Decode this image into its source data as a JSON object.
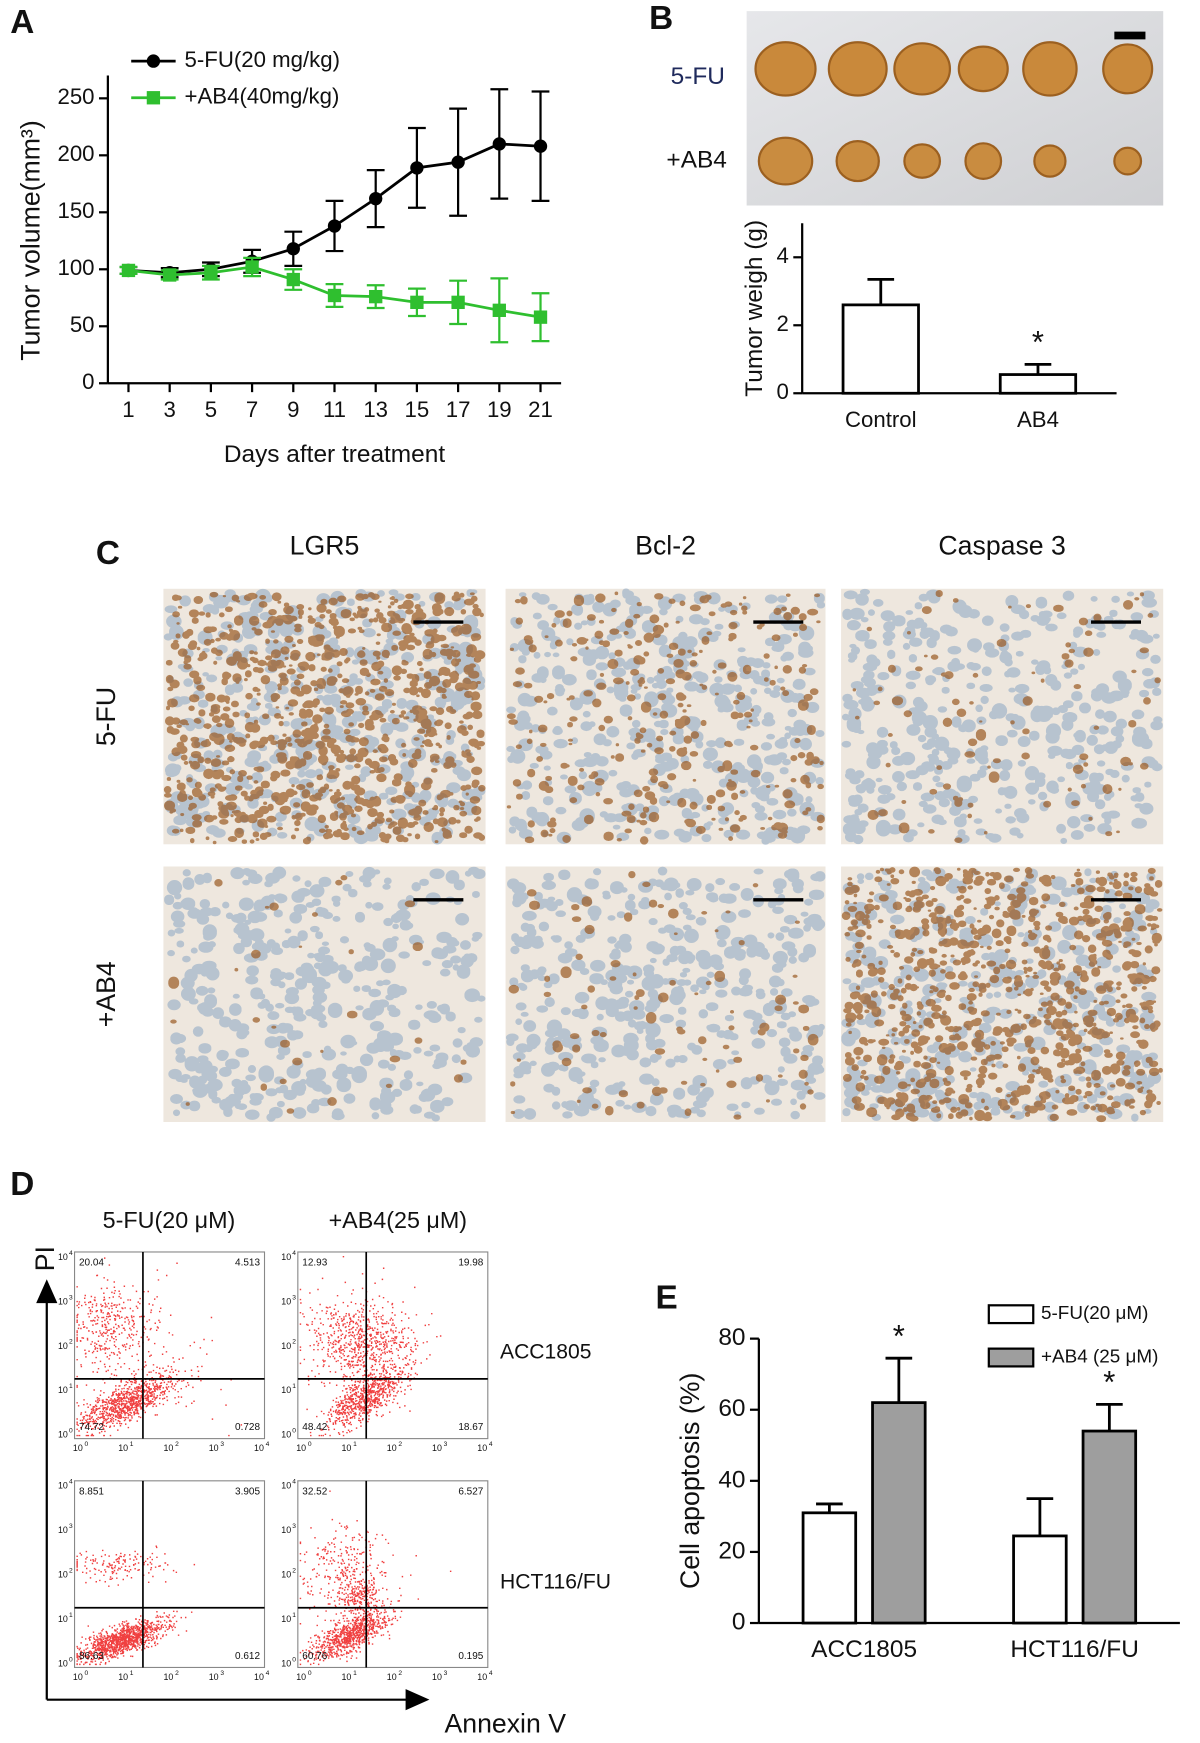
{
  "panel_labels": [
    "A",
    "B",
    "C",
    "D",
    "E"
  ],
  "chart_data": [
    {
      "type": "line",
      "x": [
        1,
        3,
        5,
        7,
        9,
        11,
        13,
        15,
        17,
        19,
        21
      ],
      "xlim": [
        0,
        22
      ],
      "xticks": [
        1,
        3,
        5,
        7,
        9,
        11,
        13,
        15,
        17,
        19,
        21
      ],
      "ylim": [
        0,
        270
      ],
      "yticks": [
        0,
        50,
        100,
        150,
        200,
        250
      ],
      "x_label": "Days after treatment",
      "y_label": "Tumor volume(mm³)",
      "legend": "upper left",
      "series": [
        {
          "name": "5-FU(20 mg/kg)",
          "color": "#000000",
          "marker": "circle",
          "values": [
            99,
            97,
            100,
            107,
            118,
            138,
            162,
            189,
            194,
            210,
            208
          ],
          "errors": [
            3,
            4,
            6,
            10,
            15,
            22,
            25,
            35,
            47,
            48,
            48
          ]
        },
        {
          "name": "+AB4(40mg/kg)",
          "color": "#2fbf2f",
          "marker": "square",
          "values": [
            99,
            95,
            97,
            102,
            91,
            77,
            76,
            71,
            71,
            64,
            58
          ],
          "errors": [
            3,
            4,
            6,
            8,
            9,
            10,
            10,
            12,
            19,
            28,
            21
          ]
        }
      ]
    },
    {
      "type": "bar",
      "categories": [
        "Control",
        "AB4"
      ],
      "values": [
        2.6,
        0.55
      ],
      "errors": [
        0.75,
        0.3
      ],
      "significance": [
        null,
        "*"
      ],
      "color": "#ffffff",
      "ylim": [
        0,
        5
      ],
      "yticks": [
        0,
        2,
        4
      ],
      "y_label": "Tumor weigh (g)"
    },
    {
      "type": "bar",
      "categories": [
        "ACC1805",
        "HCT116/FU"
      ],
      "ylim": [
        0,
        80
      ],
      "yticks": [
        0,
        20,
        40,
        60,
        80
      ],
      "y_label": "Cell apoptosis (%)",
      "legend": "upper right",
      "series": [
        {
          "name": "5-FU(20 μM)",
          "color": "#ffffff",
          "values": [
            31,
            24.5
          ],
          "errors": [
            2.5,
            10.5
          ]
        },
        {
          "name": "+AB4 (25 μM)",
          "color": "#9e9e9e",
          "values": [
            62,
            54
          ],
          "errors": [
            12.5,
            7.5
          ],
          "significance": [
            "*",
            "*"
          ]
        }
      ]
    }
  ],
  "tumor_photo": {
    "rows": [
      "5-FU",
      "+AB4"
    ]
  },
  "ihc": {
    "columns": [
      "LGR5",
      "Bcl-2",
      "Caspase 3"
    ],
    "rows": [
      "5-FU",
      "+AB4"
    ]
  },
  "flow": {
    "columns": [
      "5-FU(20 μM)",
      "+AB4(25 μM)"
    ],
    "rows": [
      "ACC1805",
      "HCT116/FU"
    ],
    "y_axis": "PI",
    "x_axis": "Annexin V",
    "tick_base": "10",
    "tick_exponents": [
      0,
      1,
      2,
      3,
      4
    ],
    "quadrants": [
      [
        20.04,
        4.513,
        74.72,
        0.728
      ],
      [
        12.93,
        19.98,
        48.42,
        18.67
      ],
      [
        8.851,
        3.905,
        86.63,
        0.612
      ],
      [
        32.52,
        6.527,
        60.76,
        0.195
      ]
    ]
  }
}
